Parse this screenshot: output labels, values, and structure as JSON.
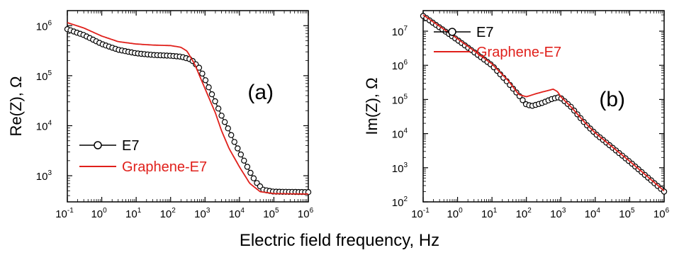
{
  "figure": {
    "xlabel": "Electric field frequency, Hz"
  },
  "chart_data": [
    {
      "type": "line",
      "panel_label": "(a)",
      "ylabel": "Re(Z), Ω",
      "xlabel": "Electric field frequency, Hz",
      "xscale": "log",
      "yscale": "log",
      "xlim": [
        0.1,
        1000000
      ],
      "ylim": [
        300,
        2000000
      ],
      "x_ticks": [
        {
          "base": "10",
          "exp": "-1"
        },
        {
          "base": "10",
          "exp": "0"
        },
        {
          "base": "10",
          "exp": "1"
        },
        {
          "base": "10",
          "exp": "2"
        },
        {
          "base": "10",
          "exp": "3"
        },
        {
          "base": "10",
          "exp": "4"
        },
        {
          "base": "10",
          "exp": "5"
        },
        {
          "base": "10",
          "exp": "6"
        }
      ],
      "x_tick_values": [
        0.1,
        1,
        10,
        100,
        1000,
        10000,
        100000,
        1000000
      ],
      "y_ticks": [
        {
          "base": "10",
          "exp": "3"
        },
        {
          "base": "10",
          "exp": "4"
        },
        {
          "base": "10",
          "exp": "5"
        },
        {
          "base": "10",
          "exp": "6"
        }
      ],
      "y_tick_values": [
        1000,
        10000,
        100000,
        1000000
      ],
      "legend_position": "bottom-left",
      "series": [
        {
          "name": "E7",
          "style": "line-with-open-circles",
          "color": "#000000",
          "points": [
            [
              0.1,
              850000
            ],
            [
              0.3,
              650000
            ],
            [
              1,
              430000
            ],
            [
              3,
              330000
            ],
            [
              10,
              280000
            ],
            [
              30,
              260000
            ],
            [
              100,
              250000
            ],
            [
              200,
              240000
            ],
            [
              400,
              210000
            ],
            [
              700,
              140000
            ],
            [
              1000,
              85000
            ],
            [
              2000,
              30000
            ],
            [
              3000,
              16000
            ],
            [
              5000,
              8000
            ],
            [
              8000,
              4000
            ],
            [
              10000,
              3000
            ],
            [
              20000,
              1200
            ],
            [
              30000,
              750
            ],
            [
              50000,
              520
            ],
            [
              100000,
              480
            ],
            [
              1000000,
              470
            ]
          ]
        },
        {
          "name": "Graphene-E7",
          "style": "line",
          "color": "#e0201b",
          "points": [
            [
              0.1,
              1150000
            ],
            [
              0.3,
              900000
            ],
            [
              1,
              620000
            ],
            [
              3,
              480000
            ],
            [
              10,
              430000
            ],
            [
              30,
              410000
            ],
            [
              100,
              400000
            ],
            [
              200,
              370000
            ],
            [
              300,
              310000
            ],
            [
              500,
              170000
            ],
            [
              1000,
              55000
            ],
            [
              2000,
              18000
            ],
            [
              3000,
              8000
            ],
            [
              5000,
              3500
            ],
            [
              10000,
              1500
            ],
            [
              20000,
              700
            ],
            [
              40000,
              480
            ],
            [
              100000,
              440
            ],
            [
              1000000,
              430
            ]
          ]
        }
      ]
    },
    {
      "type": "line",
      "panel_label": "(b)",
      "ylabel": "Im(Z), Ω",
      "xlabel": "Electric field frequency, Hz",
      "xscale": "log",
      "yscale": "log",
      "xlim": [
        0.1,
        1000000
      ],
      "ylim": [
        100,
        40000000
      ],
      "x_ticks": [
        {
          "base": "10",
          "exp": "-1"
        },
        {
          "base": "10",
          "exp": "0"
        },
        {
          "base": "10",
          "exp": "1"
        },
        {
          "base": "10",
          "exp": "2"
        },
        {
          "base": "10",
          "exp": "3"
        },
        {
          "base": "10",
          "exp": "4"
        },
        {
          "base": "10",
          "exp": "5"
        },
        {
          "base": "10",
          "exp": "6"
        }
      ],
      "x_tick_values": [
        0.1,
        1,
        10,
        100,
        1000,
        10000,
        100000,
        1000000
      ],
      "y_ticks": [
        {
          "base": "10",
          "exp": "2"
        },
        {
          "base": "10",
          "exp": "3"
        },
        {
          "base": "10",
          "exp": "4"
        },
        {
          "base": "10",
          "exp": "5"
        },
        {
          "base": "10",
          "exp": "6"
        },
        {
          "base": "10",
          "exp": "7"
        }
      ],
      "y_tick_values": [
        100,
        1000,
        10000,
        100000,
        1000000,
        10000000
      ],
      "legend_position": "top-left",
      "series": [
        {
          "name": "E7",
          "style": "line-with-open-circles",
          "color": "#000000",
          "points": [
            [
              0.1,
              28000000
            ],
            [
              1,
              5500000
            ],
            [
              10,
              1000000
            ],
            [
              30,
              300000
            ],
            [
              70,
              110000
            ],
            [
              100,
              70000
            ],
            [
              150,
              65000
            ],
            [
              300,
              80000
            ],
            [
              500,
              100000
            ],
            [
              800,
              115000
            ],
            [
              1000,
              110000
            ],
            [
              2000,
              60000
            ],
            [
              5000,
              20000
            ],
            [
              10000,
              10000
            ],
            [
              100000,
              1500
            ],
            [
              1000000,
              200
            ]
          ]
        },
        {
          "name": "Graphene-E7",
          "style": "line",
          "color": "#e0201b",
          "points": [
            [
              0.1,
              30000000
            ],
            [
              1,
              6000000
            ],
            [
              10,
              1100000
            ],
            [
              30,
              350000
            ],
            [
              60,
              140000
            ],
            [
              100,
              120000
            ],
            [
              200,
              150000
            ],
            [
              400,
              180000
            ],
            [
              600,
              200000
            ],
            [
              800,
              170000
            ],
            [
              1000,
              120000
            ],
            [
              2000,
              60000
            ],
            [
              5000,
              21000
            ],
            [
              10000,
              10500
            ],
            [
              100000,
              1550
            ],
            [
              1000000,
              210
            ]
          ]
        }
      ]
    }
  ]
}
